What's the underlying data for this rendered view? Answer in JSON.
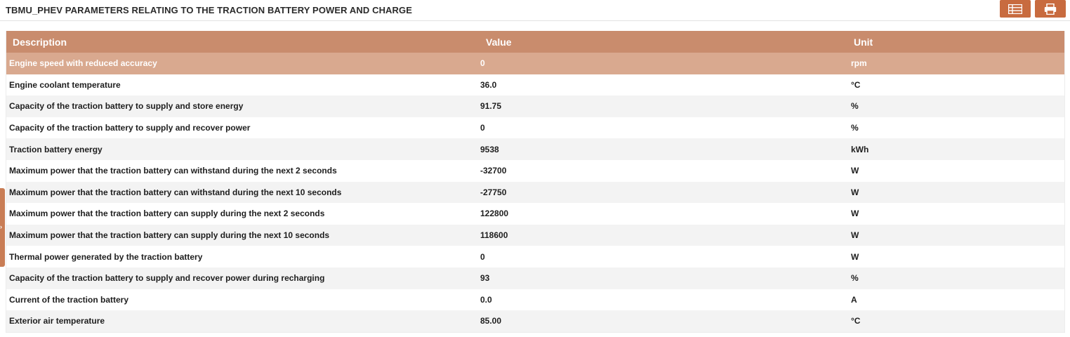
{
  "header": {
    "title": "TBMU_PHEV PARAMETERS RELATING TO THE TRACTION BATTERY POWER AND CHARGE",
    "buttons": [
      {
        "icon": "columns-icon"
      },
      {
        "icon": "print-icon"
      }
    ]
  },
  "theme": {
    "accent": "#c86b3f",
    "table_header_bg": "#c98c6d",
    "selected_row_bg": "#d9a98f"
  },
  "table": {
    "columns": [
      "Description",
      "Value",
      "Unit"
    ],
    "rows": [
      {
        "description": "Engine speed with reduced accuracy",
        "value": "0",
        "unit": "rpm",
        "selected": true
      },
      {
        "description": "Engine coolant temperature",
        "value": "36.0",
        "unit": "°C"
      },
      {
        "description": "Capacity of the traction battery to supply and store energy",
        "value": "91.75",
        "unit": "%"
      },
      {
        "description": "Capacity of the traction battery to supply and recover power",
        "value": "0",
        "unit": "%"
      },
      {
        "description": "Traction battery energy",
        "value": "9538",
        "unit": "kWh"
      },
      {
        "description": "Maximum power that the traction battery can withstand during the next 2 seconds",
        "value": "-32700",
        "unit": "W"
      },
      {
        "description": "Maximum power that the traction battery can withstand during the next 10 seconds",
        "value": "-27750",
        "unit": "W"
      },
      {
        "description": "Maximum power that the traction battery can supply during the next 2 seconds",
        "value": "122800",
        "unit": "W"
      },
      {
        "description": "Maximum power that the traction battery can supply during the next 10 seconds",
        "value": "118600",
        "unit": "W"
      },
      {
        "description": "Thermal power generated by the traction battery",
        "value": "0",
        "unit": "W"
      },
      {
        "description": "Capacity of the traction battery to supply and recover power during recharging",
        "value": "93",
        "unit": "%"
      },
      {
        "description": "Current of the traction battery",
        "value": "0.0",
        "unit": "A"
      },
      {
        "description": "Exterior air temperature",
        "value": "85.00",
        "unit": "°C"
      }
    ]
  }
}
